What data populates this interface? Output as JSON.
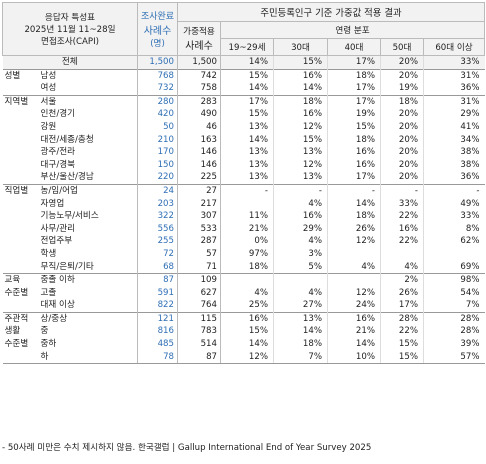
{
  "header": {
    "respondent_traits": "응답자 특성표",
    "period": "2025년 11월 11~28일",
    "method": "면접조사(CAPI)",
    "completed_survey": "조사완료",
    "cases": "사례수",
    "cases_unit": "(명)",
    "weighted_title": "주민등록인구 기준 가중값 적용 결과",
    "weighted_applied": "가중적용",
    "age_distribution": "연령 분포",
    "age_cols": [
      "19~29세",
      "30대",
      "40대",
      "50대",
      "60대 이상"
    ]
  },
  "rows": [
    {
      "group": "",
      "sub": "전체",
      "n1": "1,500",
      "n2": "1,500",
      "d": [
        "14%",
        "15%",
        "17%",
        "20%",
        "33%"
      ]
    },
    {
      "group": "성별",
      "sub": "남성",
      "n1": "768",
      "n2": "742",
      "d": [
        "15%",
        "16%",
        "18%",
        "20%",
        "31%"
      ]
    },
    {
      "group": "",
      "sub": "여성",
      "n1": "732",
      "n2": "758",
      "d": [
        "14%",
        "14%",
        "17%",
        "19%",
        "36%"
      ]
    },
    {
      "group": "지역별",
      "sub": "서울",
      "n1": "280",
      "n2": "283",
      "d": [
        "17%",
        "18%",
        "17%",
        "18%",
        "31%"
      ]
    },
    {
      "group": "",
      "sub": "인천/경기",
      "n1": "420",
      "n2": "490",
      "d": [
        "15%",
        "16%",
        "19%",
        "20%",
        "29%"
      ]
    },
    {
      "group": "",
      "sub": "강원",
      "n1": "50",
      "n2": "46",
      "d": [
        "13%",
        "12%",
        "15%",
        "20%",
        "41%"
      ]
    },
    {
      "group": "",
      "sub": "대전/세종/충청",
      "n1": "210",
      "n2": "163",
      "d": [
        "14%",
        "15%",
        "18%",
        "20%",
        "34%"
      ]
    },
    {
      "group": "",
      "sub": "광주/전라",
      "n1": "170",
      "n2": "146",
      "d": [
        "13%",
        "13%",
        "16%",
        "20%",
        "38%"
      ]
    },
    {
      "group": "",
      "sub": "대구/경북",
      "n1": "150",
      "n2": "146",
      "d": [
        "13%",
        "12%",
        "16%",
        "20%",
        "38%"
      ]
    },
    {
      "group": "",
      "sub": "부산/울산/경남",
      "n1": "220",
      "n2": "225",
      "d": [
        "13%",
        "13%",
        "17%",
        "20%",
        "36%"
      ]
    },
    {
      "group": "직업별",
      "sub": "농/임/어업",
      "n1": "24",
      "n2": "27",
      "d": [
        "-",
        "-",
        "-",
        "-",
        "-"
      ]
    },
    {
      "group": "",
      "sub": "자영업",
      "n1": "203",
      "n2": "217",
      "d": [
        "",
        "4%",
        "14%",
        "33%",
        "49%"
      ]
    },
    {
      "group": "",
      "sub": "기능노무/서비스",
      "n1": "322",
      "n2": "307",
      "d": [
        "11%",
        "16%",
        "18%",
        "22%",
        "33%"
      ]
    },
    {
      "group": "",
      "sub": "사무/관리",
      "n1": "556",
      "n2": "533",
      "d": [
        "21%",
        "29%",
        "26%",
        "16%",
        "8%"
      ]
    },
    {
      "group": "",
      "sub": "전업주부",
      "n1": "255",
      "n2": "287",
      "d": [
        "0%",
        "4%",
        "12%",
        "22%",
        "62%"
      ]
    },
    {
      "group": "",
      "sub": "학생",
      "n1": "72",
      "n2": "57",
      "d": [
        "97%",
        "3%",
        "",
        "",
        ""
      ]
    },
    {
      "group": "",
      "sub": "무직/은퇴/기타",
      "n1": "68",
      "n2": "71",
      "d": [
        "18%",
        "5%",
        "4%",
        "4%",
        "69%"
      ]
    },
    {
      "group": "교육",
      "sub": "중졸 이하",
      "n1": "87",
      "n2": "109",
      "d": [
        "",
        "",
        "",
        "2%",
        "98%"
      ]
    },
    {
      "group": "수준별",
      "sub": "고졸",
      "n1": "591",
      "n2": "627",
      "d": [
        "4%",
        "4%",
        "12%",
        "26%",
        "54%"
      ]
    },
    {
      "group": "",
      "sub": "대재 이상",
      "n1": "822",
      "n2": "764",
      "d": [
        "25%",
        "27%",
        "24%",
        "17%",
        "7%"
      ]
    },
    {
      "group": "주관적",
      "sub": "상/중상",
      "n1": "121",
      "n2": "115",
      "d": [
        "16%",
        "13%",
        "16%",
        "28%",
        "28%"
      ]
    },
    {
      "group": "생활",
      "sub": "중",
      "n1": "816",
      "n2": "783",
      "d": [
        "15%",
        "14%",
        "21%",
        "22%",
        "28%"
      ]
    },
    {
      "group": "수준별",
      "sub": "중하",
      "n1": "485",
      "n2": "514",
      "d": [
        "14%",
        "18%",
        "14%",
        "15%",
        "39%"
      ]
    },
    {
      "group": "",
      "sub": "하",
      "n1": "78",
      "n2": "87",
      "d": [
        "12%",
        "7%",
        "10%",
        "15%",
        "57%"
      ]
    }
  ],
  "footnote": "- 50사례 미만은 수치 제시하지 않음. 한국갤럽 | Gallup International End of Year Survey 2025"
}
